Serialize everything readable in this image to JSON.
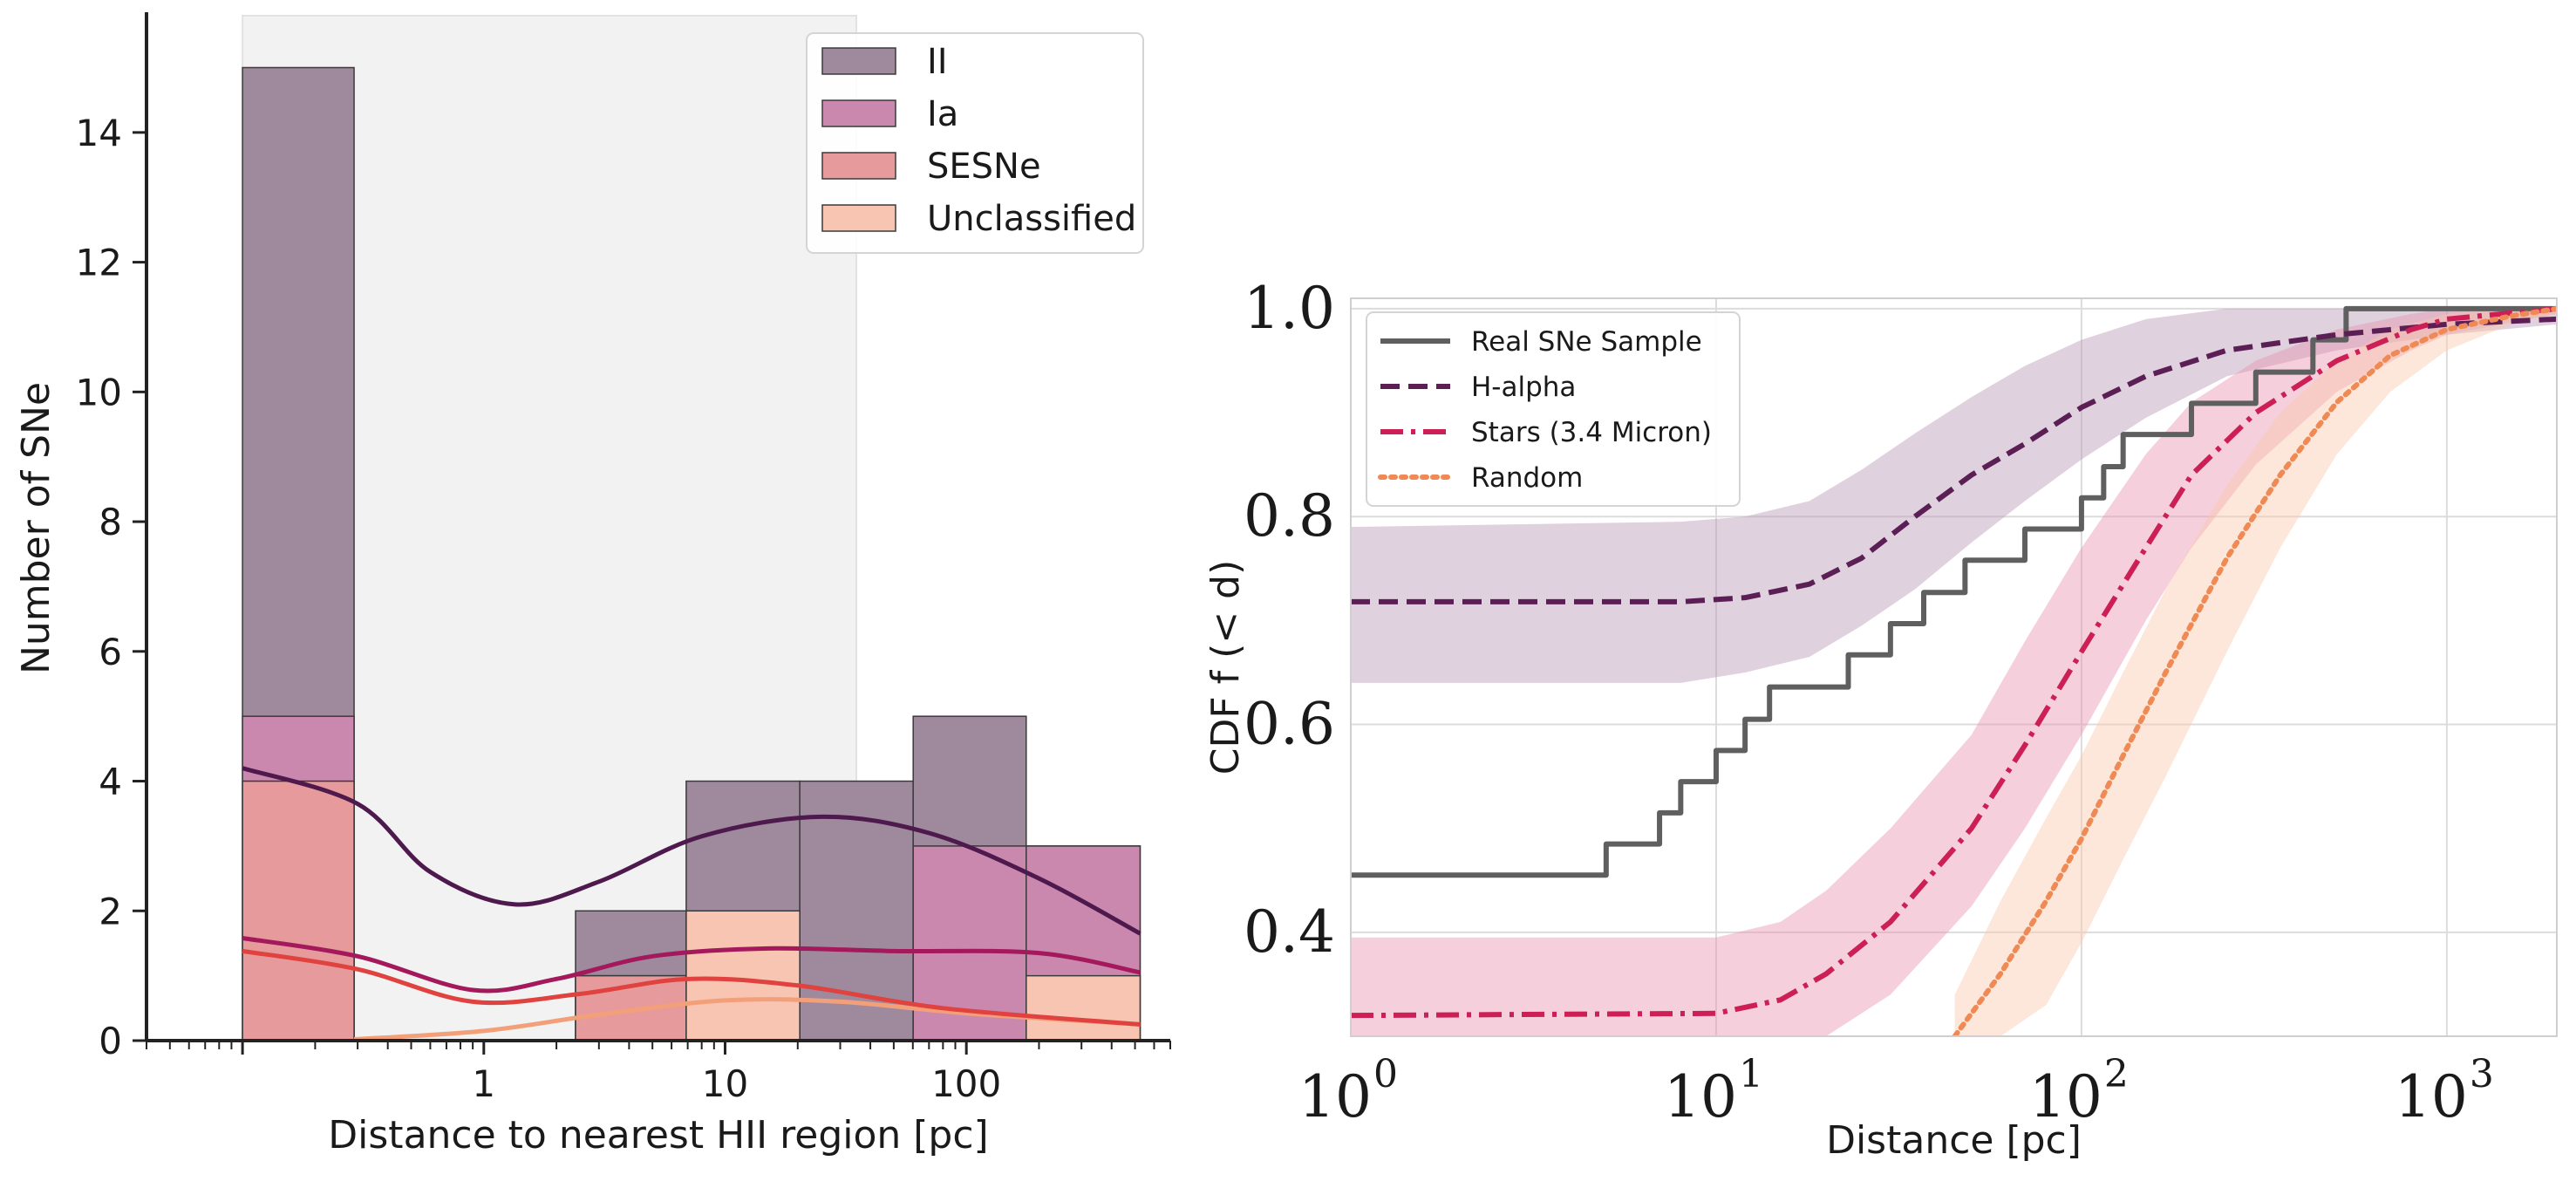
{
  "chart_data": [
    {
      "type": "histogram",
      "xlabel": "Distance to nearest HII region [pc]",
      "ylabel": "Number of SNe",
      "xscale": "log",
      "xlim": [
        0.04,
        700
      ],
      "ylim": [
        0,
        15.8
      ],
      "x_tick_values": [
        1,
        10,
        100
      ],
      "x_tick_labels": [
        "1",
        "10",
        "100"
      ],
      "y_tick_values": [
        0,
        2,
        4,
        6,
        8,
        10,
        12,
        14
      ],
      "y_tick_labels": [
        "0",
        "2",
        "4",
        "6",
        "8",
        "10",
        "12",
        "14"
      ],
      "shaded_region": [
        0.1,
        35
      ],
      "grid": false,
      "legend_position": "top-right",
      "legend_labels": [
        "II",
        "Ia",
        "SESNe",
        "Unclassified"
      ],
      "bin_edges": [
        0.1,
        0.29,
        2.4,
        6.9,
        20.4,
        60.2,
        177,
        525
      ],
      "stacked_levels": [
        {
          "name": "II",
          "color": "#9f8a9d",
          "kde_color": "#4e1a4d",
          "top": [
            15,
            0,
            2,
            4,
            4,
            5,
            3
          ],
          "kde": [
            {
              "x": 0.1,
              "y": 4.2
            },
            {
              "x": 0.3,
              "y": 3.65
            },
            {
              "x": 0.6,
              "y": 2.6
            },
            {
              "x": 1.35,
              "y": 2.1
            },
            {
              "x": 3,
              "y": 2.45
            },
            {
              "x": 8,
              "y": 3.15
            },
            {
              "x": 25,
              "y": 3.45
            },
            {
              "x": 70,
              "y": 3.2
            },
            {
              "x": 200,
              "y": 2.5
            },
            {
              "x": 525,
              "y": 1.65
            }
          ]
        },
        {
          "name": "Ia",
          "color": "#cb88ae",
          "kde_color": "#a3195b",
          "top": [
            5,
            0,
            1,
            2,
            0,
            3,
            3
          ],
          "kde": [
            {
              "x": 0.1,
              "y": 1.58
            },
            {
              "x": 0.3,
              "y": 1.3
            },
            {
              "x": 0.9,
              "y": 0.78
            },
            {
              "x": 2,
              "y": 0.95
            },
            {
              "x": 5,
              "y": 1.3
            },
            {
              "x": 15,
              "y": 1.42
            },
            {
              "x": 50,
              "y": 1.38
            },
            {
              "x": 200,
              "y": 1.35
            },
            {
              "x": 525,
              "y": 1.05
            }
          ]
        },
        {
          "name": "SESNe",
          "color": "#e69a9c",
          "kde_color": "#e0423f",
          "top": [
            4,
            0,
            1,
            0,
            0,
            0,
            0
          ],
          "kde": [
            {
              "x": 0.1,
              "y": 1.38
            },
            {
              "x": 0.3,
              "y": 1.1
            },
            {
              "x": 0.9,
              "y": 0.6
            },
            {
              "x": 2.5,
              "y": 0.72
            },
            {
              "x": 7,
              "y": 0.95
            },
            {
              "x": 20,
              "y": 0.85
            },
            {
              "x": 80,
              "y": 0.5
            },
            {
              "x": 525,
              "y": 0.25
            }
          ]
        },
        {
          "name": "Unclassified",
          "color": "#f7c5b2",
          "kde_color": "#f3a07a",
          "top": [
            0,
            0,
            0,
            2,
            0,
            0,
            1
          ],
          "kde": [
            {
              "x": 0.29,
              "y": 0.02
            },
            {
              "x": 1,
              "y": 0.15
            },
            {
              "x": 3,
              "y": 0.4
            },
            {
              "x": 10,
              "y": 0.62
            },
            {
              "x": 30,
              "y": 0.6
            },
            {
              "x": 100,
              "y": 0.42
            },
            {
              "x": 525,
              "y": 0.25
            }
          ]
        }
      ]
    },
    {
      "type": "line",
      "xlabel": "Distance [pc]",
      "ylabel": "CDF f (< d)",
      "xscale": "log",
      "xlim": [
        1,
        2000
      ],
      "ylim": [
        0.3,
        1.01
      ],
      "x_tick_values": [
        1,
        10,
        100,
        1000
      ],
      "x_tick_labels": [
        "0",
        "1",
        "2",
        "3"
      ],
      "x_tick_base": "10",
      "y_tick_values": [
        0.4,
        0.6,
        0.8,
        1.0
      ],
      "y_tick_labels": [
        "0.4",
        "0.6",
        "0.8",
        "1.0"
      ],
      "grid": true,
      "legend_position": "top-left",
      "series": [
        {
          "name": "Real SNe Sample",
          "color": "#5f5f5f",
          "style": "solid",
          "step": true,
          "x": [
            1,
            5,
            7,
            8,
            10,
            12,
            14,
            23,
            30,
            37,
            48,
            70,
            100,
            115,
            130,
            200,
            300,
            430,
            530
          ],
          "y": [
            0.455,
            0.485,
            0.515,
            0.545,
            0.575,
            0.605,
            0.636,
            0.667,
            0.697,
            0.727,
            0.758,
            0.788,
            0.818,
            0.848,
            0.879,
            0.909,
            0.939,
            0.97,
            1.0
          ]
        },
        {
          "name": "H-alpha",
          "color": "#5c1f55",
          "style": "dashed",
          "x": [
            1,
            8,
            12,
            18,
            25,
            35,
            50,
            70,
            100,
            150,
            250,
            500,
            1000,
            2000
          ],
          "y": [
            0.718,
            0.718,
            0.722,
            0.735,
            0.76,
            0.8,
            0.84,
            0.87,
            0.905,
            0.935,
            0.96,
            0.975,
            0.985,
            0.99
          ],
          "band_low": [
            0.64,
            0.64,
            0.65,
            0.665,
            0.695,
            0.73,
            0.775,
            0.815,
            0.855,
            0.895,
            0.935,
            0.96,
            0.975,
            0.985
          ],
          "band_high": [
            0.79,
            0.795,
            0.8,
            0.815,
            0.845,
            0.88,
            0.915,
            0.945,
            0.97,
            0.99,
            1.0,
            1.0,
            1.0,
            1.0
          ]
        },
        {
          "name": "Stars (3.4 Micron)",
          "color": "#cc1f56",
          "style": "dashdot",
          "x": [
            1,
            10,
            15,
            20,
            30,
            50,
            70,
            100,
            150,
            200,
            300,
            500,
            800,
            1000,
            2000
          ],
          "y": [
            0.32,
            0.322,
            0.335,
            0.36,
            0.41,
            0.5,
            0.58,
            0.67,
            0.77,
            0.84,
            0.9,
            0.95,
            0.98,
            0.99,
            1.0
          ],
          "band_low": [
            0.3,
            0.3,
            0.3,
            0.3,
            0.34,
            0.425,
            0.5,
            0.59,
            0.7,
            0.77,
            0.85,
            0.92,
            0.96,
            0.975,
            0.995
          ],
          "band_high": [
            0.395,
            0.395,
            0.41,
            0.44,
            0.5,
            0.59,
            0.68,
            0.77,
            0.86,
            0.91,
            0.95,
            0.98,
            0.995,
            1.0,
            1.0
          ]
        },
        {
          "name": "Random",
          "color": "#f08a55",
          "style": "dotted",
          "x": [
            45,
            60,
            80,
            100,
            130,
            170,
            250,
            350,
            500,
            700,
            1000,
            1500,
            2000
          ],
          "y": [
            0.3,
            0.36,
            0.43,
            0.49,
            0.57,
            0.65,
            0.76,
            0.84,
            0.91,
            0.955,
            0.98,
            0.993,
            1.0
          ],
          "band_low": [
            0.3,
            0.3,
            0.33,
            0.39,
            0.47,
            0.55,
            0.67,
            0.77,
            0.86,
            0.92,
            0.96,
            0.985,
            0.995
          ],
          "band_high": [
            0.34,
            0.43,
            0.51,
            0.57,
            0.65,
            0.73,
            0.83,
            0.9,
            0.95,
            0.98,
            0.995,
            1.0,
            1.0
          ]
        }
      ]
    }
  ]
}
